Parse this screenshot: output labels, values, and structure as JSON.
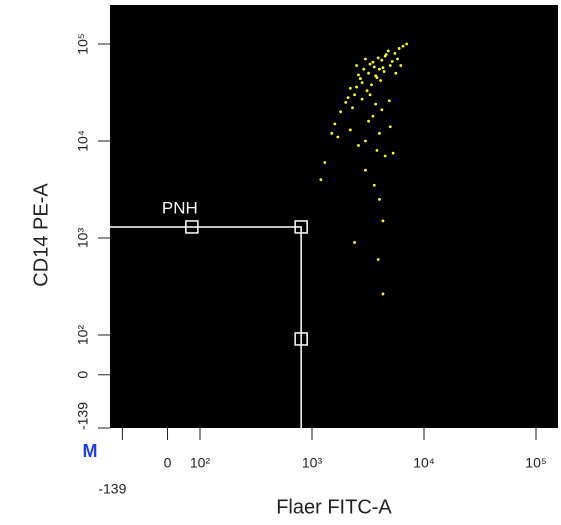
{
  "chart_data": {
    "type": "scatter",
    "x_label": "Flaer FITC-A",
    "y_label": "CD14 PE-A",
    "corner_label": "M",
    "scale": "biexponential",
    "color": "#ffff00",
    "background": "#000000",
    "xlim": [
      -139,
      200000
    ],
    "ylim": [
      -139,
      200000
    ],
    "xticks": [
      -139,
      0,
      {
        "value": 100,
        "label": "10²"
      },
      {
        "value": 1000,
        "label": "10³"
      },
      {
        "value": 10000,
        "label": "10⁴"
      },
      {
        "value": 100000,
        "label": "10⁵"
      }
    ],
    "yticks": [
      -139,
      0,
      {
        "value": 100,
        "label": "10²"
      },
      {
        "value": 1000,
        "label": "10³"
      },
      {
        "value": 10000,
        "label": "10⁴"
      },
      {
        "value": 100000,
        "label": "10⁵"
      }
    ],
    "gate": {
      "label": "PNH",
      "x": [
        75,
        800,
        800
      ],
      "y": [
        1300,
        1300,
        90
      ],
      "color": "#ffffff"
    },
    "x": [
      2500,
      3000,
      3500,
      4000,
      4500,
      5000,
      3200,
      3800,
      4200,
      2800,
      2200,
      5500,
      6000,
      3600,
      4400,
      2600,
      3300,
      4800,
      3900,
      2900,
      5200,
      4100,
      3400,
      3700,
      4600,
      2400,
      3100,
      5800,
      4300,
      2700,
      2000,
      1800,
      1600,
      6500,
      7000,
      2300,
      3500,
      4000,
      5000,
      3000,
      2600,
      3800,
      4500,
      3200,
      2100,
      1500,
      1300,
      6200,
      5600,
      4900,
      3300,
      2800,
      3700,
      4200,
      2500,
      1700,
      2200,
      3000,
      3600,
      4000,
      4300,
      2400,
      3900,
      1200,
      5300,
      4300
    ],
    "values": [
      60000,
      70000,
      65000,
      55000,
      75000,
      60000,
      50000,
      45000,
      68000,
      40000,
      35000,
      80000,
      90000,
      58000,
      52000,
      48000,
      62000,
      85000,
      72000,
      55000,
      66000,
      42000,
      38000,
      47000,
      78000,
      30000,
      33000,
      70000,
      57000,
      44000,
      25000,
      20000,
      15000,
      95000,
      100000,
      22000,
      18000,
      12000,
      14000,
      10000,
      9000,
      8000,
      7000,
      16000,
      28000,
      12000,
      6000,
      60000,
      50000,
      26000,
      30000,
      27000,
      24000,
      21000,
      36000,
      11000,
      13000,
      5000,
      3500,
      2500,
      1500,
      900,
      600,
      4000,
      7500,
      265
    ]
  }
}
